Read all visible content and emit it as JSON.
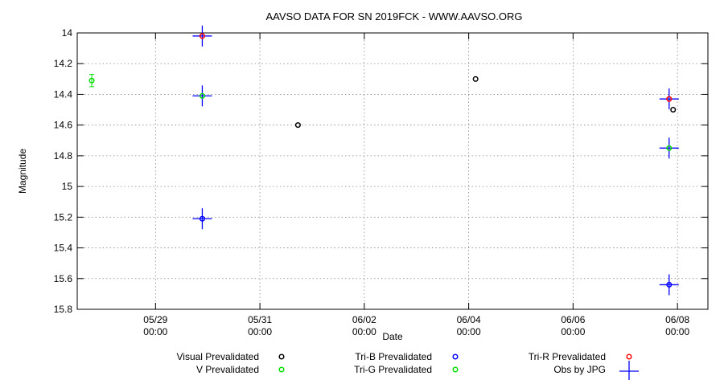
{
  "chart_data": {
    "type": "scatter",
    "title": "AAVSO DATA FOR SN 2019FCK - WWW.AAVSO.ORG",
    "xlabel": "Date",
    "ylabel": "Magnitude",
    "ylim": [
      14.0,
      15.8
    ],
    "y_inverted": true,
    "y_ticks": [
      "14",
      "14.2",
      "14.4",
      "14.6",
      "14.8",
      "15",
      "15.2",
      "15.4",
      "15.6",
      "15.8"
    ],
    "xlim": [
      "2019-05-27 12:00",
      "2019-06-08 14:00"
    ],
    "x_ticks": [
      {
        "date": "05/29",
        "time": "00:00",
        "at": "2019-05-29 00:00"
      },
      {
        "date": "05/31",
        "time": "00:00",
        "at": "2019-05-31 00:00"
      },
      {
        "date": "06/02",
        "time": "00:00",
        "at": "2019-06-02 00:00"
      },
      {
        "date": "06/04",
        "time": "00:00",
        "at": "2019-06-04 00:00"
      },
      {
        "date": "06/06",
        "time": "00:00",
        "at": "2019-06-06 00:00"
      },
      {
        "date": "06/08",
        "time": "00:00",
        "at": "2019-06-08 00:00"
      }
    ],
    "grid": true,
    "legend_position": "bottom",
    "series": [
      {
        "name": "Visual Prevalidated",
        "color": "#000000",
        "marker": "circle",
        "points": [
          {
            "x": "2019-05-31 17:30",
            "y": 14.6
          },
          {
            "x": "2019-06-04 03:10",
            "y": 14.3
          },
          {
            "x": "2019-06-07 22:00",
            "y": 14.5
          }
        ]
      },
      {
        "name": "V Prevalidated",
        "color": "#00dd00",
        "marker": "circle",
        "points": [
          {
            "x": "2019-05-27 18:40",
            "y": 14.31,
            "err": 0.04
          },
          {
            "x": "2019-05-29 21:30",
            "y": 14.41
          },
          {
            "x": "2019-06-07 20:10",
            "y": 14.75
          }
        ]
      },
      {
        "name": "Tri-B Prevalidated",
        "color": "#0000ff",
        "marker": "circle",
        "points": [
          {
            "x": "2019-05-29 21:30",
            "y": 15.21
          },
          {
            "x": "2019-06-07 20:10",
            "y": 15.64
          }
        ]
      },
      {
        "name": "Tri-G Prevalidated",
        "color": "#00dd00",
        "marker": "circle",
        "points": []
      },
      {
        "name": "Tri-R Prevalidated",
        "color": "#ff0000",
        "marker": "circle",
        "points": [
          {
            "x": "2019-05-29 21:30",
            "y": 14.02
          },
          {
            "x": "2019-06-07 20:10",
            "y": 14.43
          }
        ]
      },
      {
        "name": "Obs by JPG",
        "color": "#0000ff",
        "marker": "plus",
        "points": [
          {
            "x": "2019-05-29 21:30",
            "y": 14.02
          },
          {
            "x": "2019-05-29 21:30",
            "y": 14.41
          },
          {
            "x": "2019-05-29 21:30",
            "y": 15.21
          },
          {
            "x": "2019-06-07 20:10",
            "y": 14.43
          },
          {
            "x": "2019-06-07 20:10",
            "y": 14.75
          },
          {
            "x": "2019-06-07 20:10",
            "y": 15.64
          }
        ]
      }
    ],
    "legend_order": [
      "Visual Prevalidated",
      "Tri-B Prevalidated",
      "Tri-R Prevalidated",
      "V Prevalidated",
      "Tri-G Prevalidated",
      "Obs by JPG"
    ]
  }
}
